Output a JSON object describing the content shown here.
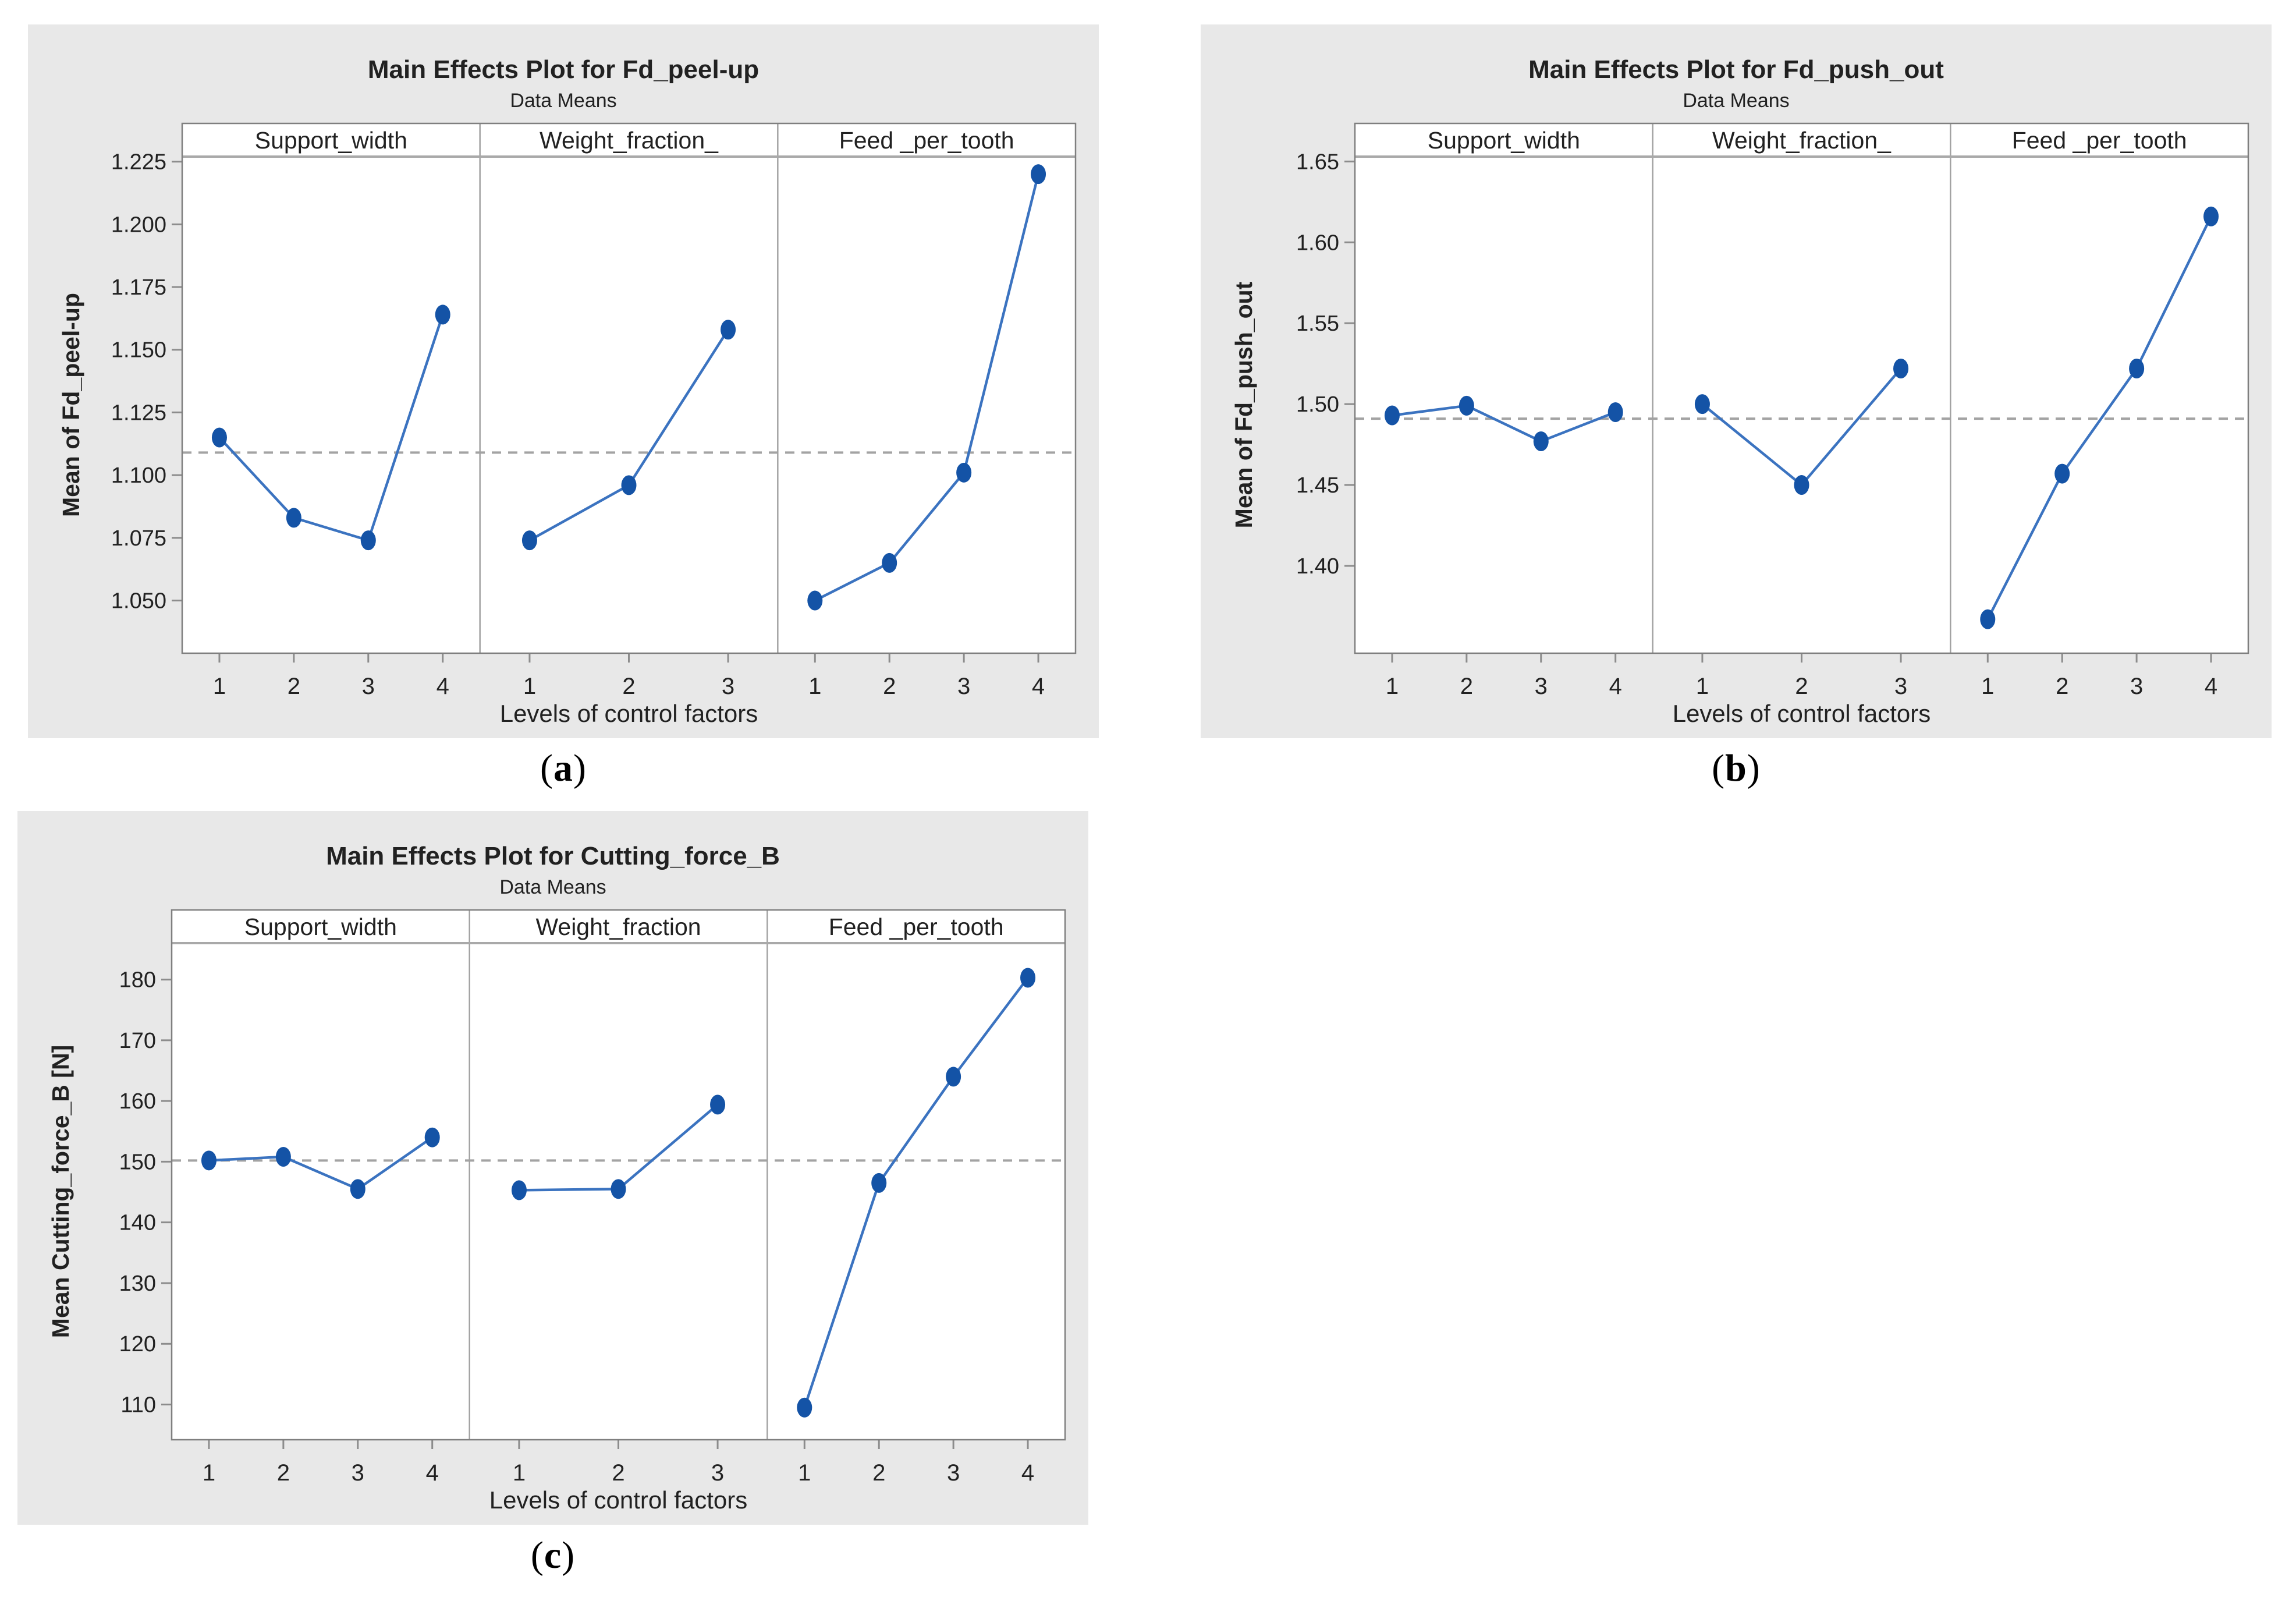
{
  "style": {
    "card_bg": "#e8e8e8",
    "panel_bg": "#ffffff",
    "border_color": "#7f7f7f",
    "header_line_color": "#a9a9a9",
    "divider_color": "#a2a2a2",
    "tick_mark_color": "#8c8c8c",
    "dashed_line_color": "#a3a3a3",
    "line_color": "#3b73c0",
    "marker_color": "#1453a6",
    "text_color": "#212121"
  },
  "captions": {
    "a": {
      "open": "(",
      "letter": "a",
      "close": ")"
    },
    "b": {
      "open": "(",
      "letter": "b",
      "close": ")"
    },
    "c": {
      "open": "(",
      "letter": "c",
      "close": ")"
    }
  },
  "chart_data": [
    {
      "type": "line",
      "id": "a",
      "title": "Main Effects Plot for Fd_peel-up",
      "subtitle": "Data Means",
      "ylabel": "Mean of Fd_peel-up",
      "xlabel": "Levels of control factors",
      "ylim": [
        1.029,
        1.227
      ],
      "ytick_values": [
        1.05,
        1.075,
        1.1,
        1.125,
        1.15,
        1.175,
        1.2,
        1.225
      ],
      "ytick_labels": [
        "1.050",
        "1.075",
        "1.100",
        "1.125",
        "1.150",
        "1.175",
        "1.200",
        "1.225"
      ],
      "grand_mean": 1.109,
      "legend_position": "none",
      "grid": false,
      "panels": [
        {
          "label": "Support_width",
          "levels": [
            "1",
            "2",
            "3",
            "4"
          ],
          "values": [
            1.115,
            1.083,
            1.074,
            1.164
          ]
        },
        {
          "label": "Weight_fraction_",
          "levels": [
            "1",
            "2",
            "3"
          ],
          "values": [
            1.074,
            1.096,
            1.158
          ]
        },
        {
          "label": "Feed _per_tooth",
          "levels": [
            "1",
            "2",
            "3",
            "4"
          ],
          "values": [
            1.05,
            1.065,
            1.101,
            1.22
          ]
        }
      ]
    },
    {
      "type": "line",
      "id": "b",
      "title": "Main Effects Plot for Fd_push_out",
      "subtitle": "Data Means",
      "ylabel": "Mean of Fd_push_out",
      "xlabel": "Levels of control factors",
      "ylim": [
        1.346,
        1.653
      ],
      "ytick_values": [
        1.4,
        1.45,
        1.5,
        1.55,
        1.6,
        1.65
      ],
      "ytick_labels": [
        "1.40",
        "1.45",
        "1.50",
        "1.55",
        "1.60",
        "1.65"
      ],
      "grand_mean": 1.491,
      "legend_position": "none",
      "grid": false,
      "panels": [
        {
          "label": "Support_width",
          "levels": [
            "1",
            "2",
            "3",
            "4"
          ],
          "values": [
            1.493,
            1.499,
            1.477,
            1.495
          ]
        },
        {
          "label": "Weight_fraction_",
          "levels": [
            "1",
            "2",
            "3"
          ],
          "values": [
            1.5,
            1.45,
            1.522
          ]
        },
        {
          "label": "Feed _per_tooth",
          "levels": [
            "1",
            "2",
            "3",
            "4"
          ],
          "values": [
            1.367,
            1.457,
            1.522,
            1.616
          ]
        }
      ]
    },
    {
      "type": "line",
      "id": "c",
      "title": "Main Effects Plot for Cutting_force_B",
      "subtitle": "Data Means",
      "ylabel": "Mean Cutting_force_B [N]",
      "xlabel": "Levels of control factors",
      "ylim": [
        104.2,
        186
      ],
      "ytick_values": [
        110,
        120,
        130,
        140,
        150,
        160,
        170,
        180
      ],
      "ytick_labels": [
        "110",
        "120",
        "130",
        "140",
        "150",
        "160",
        "170",
        "180"
      ],
      "grand_mean": 150.2,
      "legend_position": "none",
      "grid": false,
      "panels": [
        {
          "label": "Support_width",
          "levels": [
            "1",
            "2",
            "3",
            "4"
          ],
          "values": [
            150.2,
            150.8,
            145.5,
            154.0
          ]
        },
        {
          "label": "Weight_fraction",
          "levels": [
            "1",
            "2",
            "3"
          ],
          "values": [
            145.3,
            145.5,
            159.4
          ]
        },
        {
          "label": "Feed _per_tooth",
          "levels": [
            "1",
            "2",
            "3",
            "4"
          ],
          "values": [
            109.5,
            146.5,
            164.0,
            180.3
          ]
        }
      ]
    }
  ]
}
